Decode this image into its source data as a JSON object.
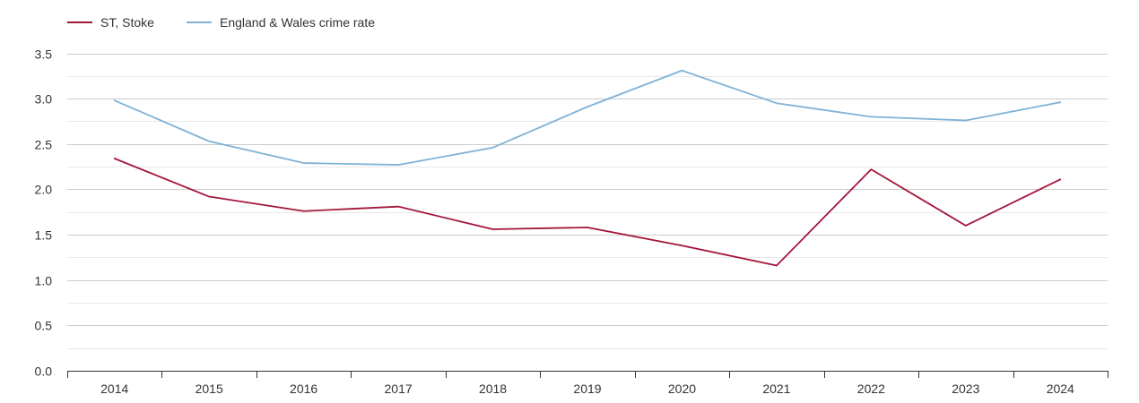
{
  "chart_data": {
    "type": "line",
    "title": "",
    "xlabel": "",
    "ylabel": "",
    "categories": [
      "2014",
      "2015",
      "2016",
      "2017",
      "2018",
      "2019",
      "2020",
      "2021",
      "2022",
      "2023",
      "2024"
    ],
    "ylim": [
      0,
      3.5
    ],
    "yticks": [
      "0.0",
      "0.5",
      "1.0",
      "1.5",
      "2.0",
      "2.5",
      "3.0",
      "3.5"
    ],
    "grid": true,
    "legend_position": "top-left",
    "series": [
      {
        "name": "ST, Stoke",
        "color": "#a3163a",
        "values": [
          2.34,
          1.92,
          1.76,
          1.81,
          1.56,
          1.58,
          1.38,
          1.16,
          2.22,
          1.6,
          2.11
        ]
      },
      {
        "name": "England & Wales crime rate",
        "color": "#7fb2d6",
        "values": [
          2.98,
          2.53,
          2.29,
          2.27,
          2.46,
          2.91,
          3.31,
          2.95,
          2.8,
          2.76,
          2.96
        ]
      }
    ]
  }
}
